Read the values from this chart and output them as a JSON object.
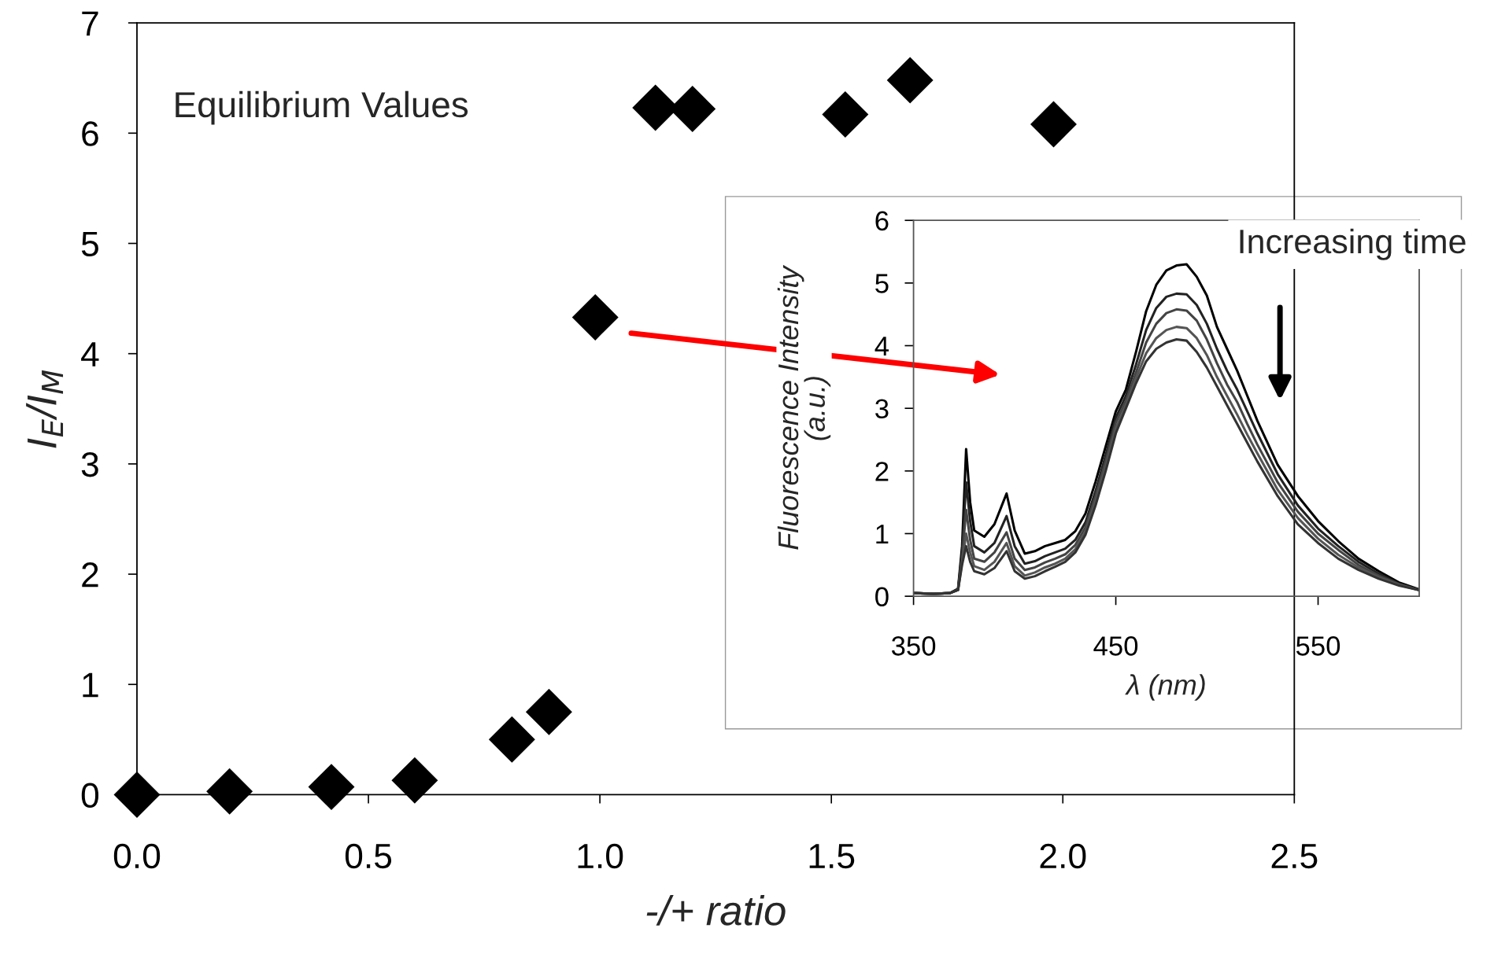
{
  "chart_data": [
    {
      "type": "scatter",
      "marker": "diamond",
      "color": "#000000",
      "x": [
        0,
        0.2,
        0.42,
        0.6,
        0.81,
        0.89,
        0.99,
        1.12,
        1.2,
        1.53,
        1.67,
        1.98
      ],
      "values": [
        0,
        0.03,
        0.07,
        0.13,
        0.5,
        0.75,
        4.33,
        6.23,
        6.22,
        6.17,
        6.48,
        6.08
      ],
      "xlim": [
        0,
        2.5
      ],
      "xticks": [
        {
          "value": 0,
          "label": "0.0"
        },
        {
          "value": 0.5,
          "label": "0.5"
        },
        {
          "value": 1,
          "label": "1.0"
        },
        {
          "value": 1.5,
          "label": "1.5"
        },
        {
          "value": 2,
          "label": "2.0"
        },
        {
          "value": 2.5,
          "label": "2.5"
        }
      ],
      "ylim": [
        0,
        7
      ],
      "yticks": [
        0,
        1,
        2,
        3,
        4,
        5,
        6,
        7
      ],
      "xlabel": "-/+ ratio",
      "ylabel": "I$_{E}$/I$_{M}$",
      "annotations": [
        "Equilibrium Values"
      ]
    },
    {
      "type": "line",
      "x": [
        350,
        360,
        368,
        372,
        374,
        376,
        378,
        380,
        385,
        390,
        396,
        400,
        405,
        410,
        415,
        420,
        425,
        430,
        435,
        440,
        445,
        450,
        455,
        460,
        465,
        470,
        475,
        480,
        485,
        490,
        495,
        500,
        505,
        510,
        515,
        520,
        530,
        540,
        550,
        560,
        570,
        580,
        590,
        600
      ],
      "series": [
        {
          "color": "#000000",
          "values": [
            0.05,
            0.04,
            0.05,
            0.12,
            0.8,
            2.35,
            1.5,
            1.05,
            0.95,
            1.15,
            1.64,
            1.05,
            0.68,
            0.72,
            0.8,
            0.85,
            0.9,
            1.04,
            1.32,
            1.83,
            2.39,
            2.95,
            3.3,
            3.9,
            4.55,
            4.97,
            5.2,
            5.28,
            5.3,
            5.1,
            4.8,
            4.3,
            3.95,
            3.6,
            3.2,
            2.8,
            2.1,
            1.6,
            1.2,
            0.88,
            0.6,
            0.4,
            0.22,
            0.11
          ]
        },
        {
          "color": "#222222",
          "values": [
            0.05,
            0.04,
            0.05,
            0.11,
            0.7,
            1.82,
            1.2,
            0.8,
            0.7,
            0.85,
            1.28,
            0.8,
            0.52,
            0.56,
            0.64,
            0.7,
            0.76,
            0.9,
            1.18,
            1.68,
            2.25,
            2.85,
            3.2,
            3.7,
            4.25,
            4.6,
            4.78,
            4.83,
            4.82,
            4.65,
            4.35,
            3.95,
            3.6,
            3.3,
            2.95,
            2.6,
            1.95,
            1.45,
            1.08,
            0.8,
            0.55,
            0.36,
            0.2,
            0.1
          ]
        },
        {
          "color": "#444444",
          "values": [
            0.05,
            0.04,
            0.05,
            0.1,
            0.6,
            1.38,
            0.9,
            0.6,
            0.55,
            0.7,
            1.02,
            0.6,
            0.42,
            0.46,
            0.54,
            0.6,
            0.67,
            0.82,
            1.1,
            1.6,
            2.16,
            2.77,
            3.12,
            3.57,
            4.05,
            4.35,
            4.52,
            4.58,
            4.56,
            4.4,
            4.1,
            3.72,
            3.38,
            3.1,
            2.75,
            2.42,
            1.82,
            1.35,
            1.0,
            0.74,
            0.5,
            0.33,
            0.19,
            0.1
          ]
        },
        {
          "color": "#555555",
          "values": [
            0.05,
            0.04,
            0.05,
            0.1,
            0.55,
            1.0,
            0.7,
            0.48,
            0.42,
            0.55,
            0.85,
            0.48,
            0.33,
            0.38,
            0.46,
            0.52,
            0.6,
            0.75,
            1.03,
            1.52,
            2.06,
            2.68,
            3.05,
            3.48,
            3.88,
            4.12,
            4.25,
            4.3,
            4.28,
            4.12,
            3.85,
            3.5,
            3.2,
            2.9,
            2.58,
            2.28,
            1.7,
            1.25,
            0.92,
            0.66,
            0.46,
            0.3,
            0.18,
            0.1
          ]
        },
        {
          "color": "#333333",
          "values": [
            0.05,
            0.04,
            0.05,
            0.1,
            0.5,
            0.8,
            0.55,
            0.4,
            0.35,
            0.45,
            0.72,
            0.4,
            0.28,
            0.32,
            0.4,
            0.47,
            0.55,
            0.7,
            0.98,
            1.45,
            2.0,
            2.6,
            3.0,
            3.4,
            3.75,
            3.95,
            4.05,
            4.1,
            4.08,
            3.9,
            3.65,
            3.35,
            3.05,
            2.75,
            2.45,
            2.15,
            1.6,
            1.15,
            0.85,
            0.6,
            0.42,
            0.28,
            0.17,
            0.1
          ]
        }
      ],
      "xlim": [
        350,
        600
      ],
      "xticks": [
        350,
        450,
        550
      ],
      "ylim": [
        0,
        6
      ],
      "yticks": [
        0,
        1,
        2,
        3,
        4,
        5,
        6
      ],
      "xlabel": "λ (nm)",
      "ylabel": "Fluorescence Intensity\n(a.u.)",
      "annotations": [
        "Increasing time"
      ]
    }
  ]
}
